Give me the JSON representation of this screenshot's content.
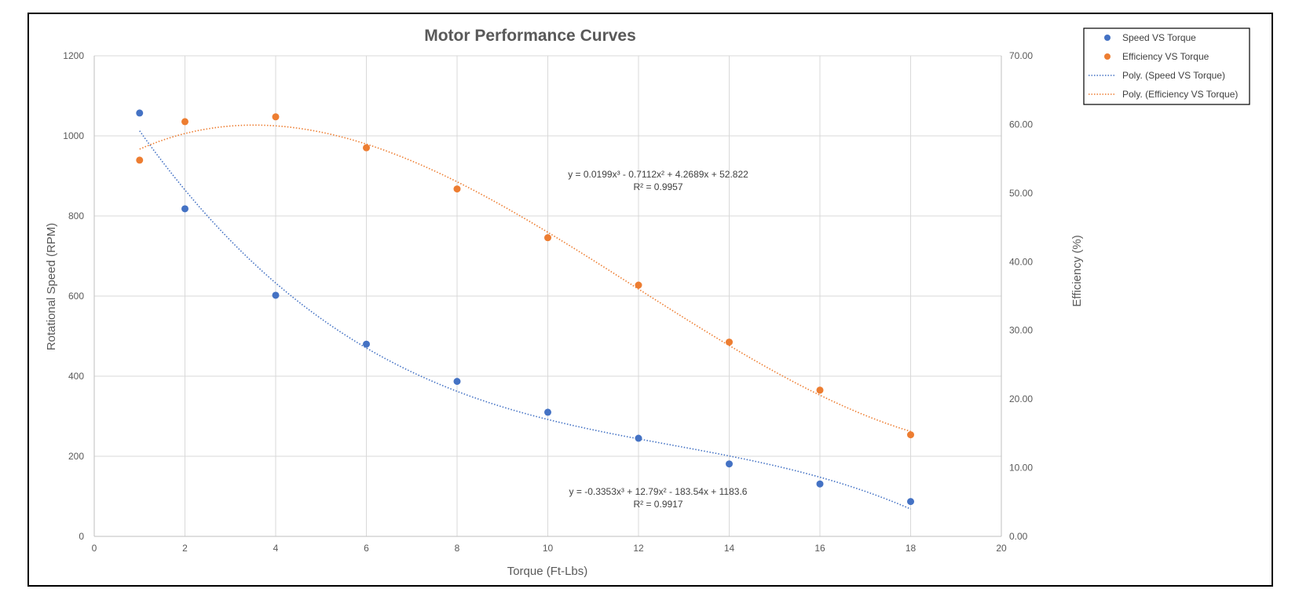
{
  "chart_data": {
    "type": "scatter",
    "title": "Motor Performance Curves",
    "xlabel": "Torque (Ft-Lbs)",
    "ylabel": "Rotational Speed (RPM)",
    "y2label": "Efficiency (%)",
    "xlim": [
      0,
      20
    ],
    "ylim": [
      0,
      1200
    ],
    "y2lim": [
      0,
      70
    ],
    "x_ticks": [
      "0",
      "2",
      "4",
      "6",
      "8",
      "10",
      "12",
      "14",
      "16",
      "18",
      "20"
    ],
    "y_ticks": [
      "0",
      "200",
      "400",
      "600",
      "800",
      "1000",
      "1200"
    ],
    "y2_ticks": [
      "0.00",
      "10.00",
      "20.00",
      "30.00",
      "40.00",
      "50.00",
      "60.00",
      "70.00"
    ],
    "grid": true,
    "legend_position": "top-right",
    "series": [
      {
        "name": "Speed VS Torque",
        "axis": "left",
        "color": "#4472C4",
        "x": [
          1,
          2,
          4,
          6,
          8,
          10,
          12,
          14,
          16,
          18
        ],
        "y": [
          1057,
          818,
          602,
          480,
          387,
          310,
          245,
          181,
          131,
          87
        ]
      },
      {
        "name": "Efficiency VS Torque",
        "axis": "right",
        "color": "#ED7D31",
        "x": [
          1,
          2,
          4,
          6,
          8,
          10,
          12,
          14,
          16,
          18
        ],
        "y": [
          54.8,
          60.4,
          61.1,
          56.6,
          50.6,
          43.5,
          36.6,
          28.3,
          21.3,
          14.8
        ]
      }
    ],
    "trendlines": [
      {
        "name": "Poly. (Speed VS Torque)",
        "axis": "left",
        "color": "#4472C4",
        "coefficients": [
          -0.3353,
          12.79,
          -183.54,
          1183.6
        ],
        "x_range": [
          1,
          18
        ],
        "equation": "y = -0.3353x³ + 12.79x² - 183.54x + 1183.6",
        "r2": "R² = 0.9917"
      },
      {
        "name": "Poly. (Efficiency VS Torque)",
        "axis": "right",
        "color": "#ED7D31",
        "coefficients": [
          0.0199,
          -0.7112,
          4.2689,
          52.822
        ],
        "x_range": [
          1,
          18
        ],
        "equation": "y = 0.0199x³ - 0.7112x² + 4.2689x + 52.822",
        "r2": "R² = 0.9957"
      }
    ],
    "legend": [
      "Speed VS Torque",
      "Efficiency VS Torque",
      "Poly. (Speed VS Torque)",
      "Poly. (Efficiency VS Torque)"
    ]
  }
}
